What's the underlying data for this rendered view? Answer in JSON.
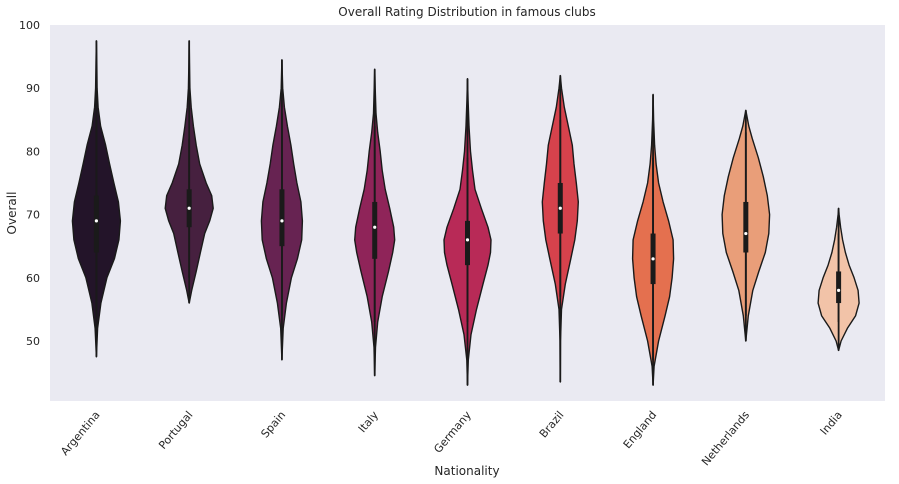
{
  "chart_data": {
    "type": "violin",
    "title": "Overall Rating Distribution in famous clubs",
    "xlabel": "Nationality",
    "ylabel": "Overall",
    "ylim": [
      40.5,
      100
    ],
    "yticks": [
      50,
      60,
      70,
      80,
      90,
      100
    ],
    "grid": false,
    "legend": "none",
    "colors": {
      "plot_background": "#eaeaf2",
      "outline": "#1a1a1a"
    },
    "categories": [
      "Argentina",
      "Portugal",
      "Spain",
      "Italy",
      "Germany",
      "Brazil",
      "England",
      "Netherlands",
      "India"
    ],
    "violins": [
      {
        "name": "Argentina",
        "color": "#231429",
        "min": 47.5,
        "max": 97.5,
        "q1": 64,
        "median": 69,
        "q3": 73,
        "whisker_low": 50,
        "whisker_high": 85,
        "profile": [
          [
            47.5,
            0
          ],
          [
            52,
            0.05
          ],
          [
            56,
            0.18
          ],
          [
            60,
            0.42
          ],
          [
            63,
            0.72
          ],
          [
            66,
            0.9
          ],
          [
            69,
            0.96
          ],
          [
            72,
            0.88
          ],
          [
            75,
            0.7
          ],
          [
            78,
            0.53
          ],
          [
            81,
            0.37
          ],
          [
            84,
            0.17
          ],
          [
            87,
            0.07
          ],
          [
            90,
            0.03
          ],
          [
            94,
            0.015
          ],
          [
            97.5,
            0
          ]
        ]
      },
      {
        "name": "Portugal",
        "color": "#46203f",
        "min": 56,
        "max": 97.5,
        "q1": 68,
        "median": 71,
        "q3": 74,
        "whisker_low": 60,
        "whisker_high": 82,
        "profile": [
          [
            56,
            0
          ],
          [
            58,
            0.1
          ],
          [
            61,
            0.28
          ],
          [
            64,
            0.45
          ],
          [
            67,
            0.62
          ],
          [
            69,
            0.82
          ],
          [
            71,
            0.96
          ],
          [
            73,
            0.9
          ],
          [
            75,
            0.68
          ],
          [
            78,
            0.42
          ],
          [
            81,
            0.28
          ],
          [
            84,
            0.17
          ],
          [
            87,
            0.08
          ],
          [
            90,
            0.03
          ],
          [
            94,
            0.012
          ],
          [
            97.5,
            0
          ]
        ]
      },
      {
        "name": "Spain",
        "color": "#672352",
        "min": 47,
        "max": 94.5,
        "q1": 65,
        "median": 69,
        "q3": 74,
        "whisker_low": 54,
        "whisker_high": 86,
        "profile": [
          [
            47,
            0
          ],
          [
            52,
            0.05
          ],
          [
            56,
            0.18
          ],
          [
            60,
            0.38
          ],
          [
            63,
            0.62
          ],
          [
            66,
            0.79
          ],
          [
            69,
            0.82
          ],
          [
            72,
            0.76
          ],
          [
            75,
            0.6
          ],
          [
            78,
            0.47
          ],
          [
            81,
            0.36
          ],
          [
            84,
            0.22
          ],
          [
            87,
            0.1
          ],
          [
            90,
            0.03
          ],
          [
            94.5,
            0
          ]
        ]
      },
      {
        "name": "Italy",
        "color": "#8f2459",
        "min": 44.5,
        "max": 93,
        "q1": 63,
        "median": 68,
        "q3": 72,
        "whisker_low": 53,
        "whisker_high": 84,
        "profile": [
          [
            44.5,
            0
          ],
          [
            49,
            0.03
          ],
          [
            53,
            0.12
          ],
          [
            57,
            0.3
          ],
          [
            61,
            0.55
          ],
          [
            64,
            0.72
          ],
          [
            66,
            0.8
          ],
          [
            68,
            0.76
          ],
          [
            71,
            0.6
          ],
          [
            74,
            0.42
          ],
          [
            77,
            0.3
          ],
          [
            80,
            0.22
          ],
          [
            83,
            0.12
          ],
          [
            86,
            0.05
          ],
          [
            90,
            0.02
          ],
          [
            93,
            0
          ]
        ]
      },
      {
        "name": "Germany",
        "color": "#b82a57",
        "min": 43,
        "max": 91.5,
        "q1": 62,
        "median": 66,
        "q3": 69,
        "whisker_low": 53,
        "whisker_high": 79,
        "profile": [
          [
            43,
            0
          ],
          [
            47,
            0.03
          ],
          [
            51,
            0.14
          ],
          [
            55,
            0.36
          ],
          [
            59,
            0.62
          ],
          [
            62,
            0.82
          ],
          [
            64,
            0.92
          ],
          [
            66,
            0.94
          ],
          [
            68,
            0.82
          ],
          [
            71,
            0.55
          ],
          [
            74,
            0.3
          ],
          [
            77,
            0.2
          ],
          [
            80,
            0.12
          ],
          [
            84,
            0.06
          ],
          [
            88,
            0.025
          ],
          [
            91.5,
            0
          ]
        ]
      },
      {
        "name": "Brazil",
        "color": "#d6424c",
        "min": 43.5,
        "max": 92,
        "q1": 67,
        "median": 71,
        "q3": 75,
        "whisker_low": 57,
        "whisker_high": 85,
        "profile": [
          [
            43.5,
            0
          ],
          [
            50,
            0.01
          ],
          [
            55,
            0.05
          ],
          [
            59,
            0.2
          ],
          [
            63,
            0.42
          ],
          [
            66,
            0.58
          ],
          [
            69,
            0.68
          ],
          [
            72,
            0.72
          ],
          [
            75,
            0.64
          ],
          [
            78,
            0.55
          ],
          [
            81,
            0.48
          ],
          [
            84,
            0.32
          ],
          [
            87,
            0.16
          ],
          [
            90,
            0.05
          ],
          [
            92,
            0
          ]
        ]
      },
      {
        "name": "England",
        "color": "#e4704f",
        "min": 43,
        "max": 89,
        "q1": 59,
        "median": 63,
        "q3": 67,
        "whisker_low": 47,
        "whisker_high": 79,
        "profile": [
          [
            43,
            0
          ],
          [
            46,
            0.04
          ],
          [
            50,
            0.22
          ],
          [
            54,
            0.48
          ],
          [
            57,
            0.66
          ],
          [
            60,
            0.76
          ],
          [
            63,
            0.82
          ],
          [
            66,
            0.8
          ],
          [
            69,
            0.62
          ],
          [
            72,
            0.4
          ],
          [
            75,
            0.22
          ],
          [
            78,
            0.12
          ],
          [
            81,
            0.06
          ],
          [
            85,
            0.02
          ],
          [
            89,
            0
          ]
        ]
      },
      {
        "name": "Netherlands",
        "color": "#e99e79",
        "min": 50,
        "max": 86.5,
        "q1": 64,
        "median": 67,
        "q3": 72,
        "whisker_low": 54,
        "whisker_high": 83,
        "profile": [
          [
            50,
            0
          ],
          [
            54,
            0.1
          ],
          [
            58,
            0.28
          ],
          [
            61,
            0.52
          ],
          [
            64,
            0.78
          ],
          [
            67,
            0.92
          ],
          [
            70,
            0.95
          ],
          [
            73,
            0.86
          ],
          [
            76,
            0.7
          ],
          [
            79,
            0.5
          ],
          [
            82,
            0.26
          ],
          [
            84,
            0.12
          ],
          [
            86.5,
            0
          ]
        ]
      },
      {
        "name": "India",
        "color": "#f2c3a8",
        "min": 48.5,
        "max": 71,
        "q1": 56,
        "median": 58,
        "q3": 61,
        "whisker_low": 53,
        "whisker_high": 67,
        "profile": [
          [
            48.5,
            0
          ],
          [
            50,
            0.1
          ],
          [
            52,
            0.35
          ],
          [
            54,
            0.68
          ],
          [
            56,
            0.82
          ],
          [
            58,
            0.78
          ],
          [
            60,
            0.62
          ],
          [
            62,
            0.42
          ],
          [
            64,
            0.27
          ],
          [
            66,
            0.16
          ],
          [
            68,
            0.08
          ],
          [
            70,
            0.02
          ],
          [
            71,
            0
          ]
        ]
      }
    ]
  }
}
